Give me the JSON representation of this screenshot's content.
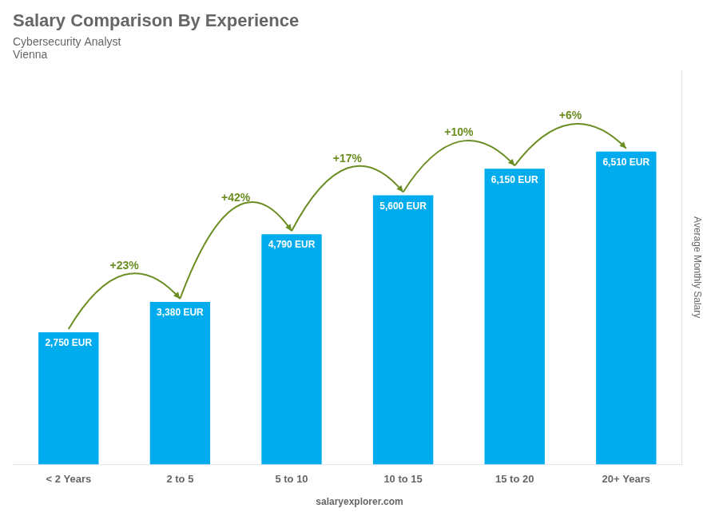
{
  "chart_data": {
    "type": "bar",
    "title": "Salary Comparison By Experience",
    "subtitle": [
      "Cybersecurity Analyst",
      "Vienna"
    ],
    "ylabel": "Average Monthly Salary",
    "categories": [
      "< 2 Years",
      "2 to 5",
      "5 to 10",
      "10 to 15",
      "15 to 20",
      "20+ Years"
    ],
    "values": [
      2750,
      3380,
      4790,
      5600,
      6150,
      6510
    ],
    "value_labels": [
      "2,750 EUR",
      "3,380 EUR",
      "4,790 EUR",
      "5,600 EUR",
      "6,150 EUR",
      "6,510 EUR"
    ],
    "data_labels": true,
    "annotations": [
      "+23%",
      "+42%",
      "+17%",
      "+10%",
      "+6%"
    ],
    "watermark": "salaryexplorer.com",
    "color": "#00aced",
    "ylim": [
      0,
      8200
    ],
    "tick_labels": "x",
    "grid": false
  }
}
